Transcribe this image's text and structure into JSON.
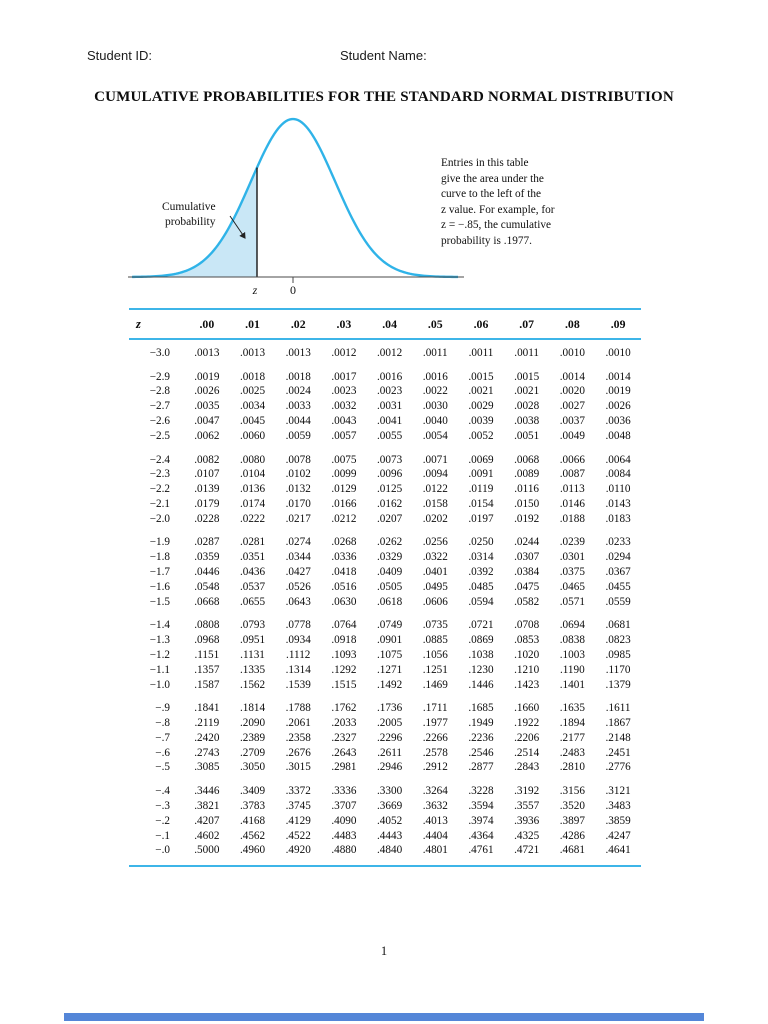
{
  "header": {
    "student_id_label": "Student ID:",
    "student_name_label": "Student Name:"
  },
  "title": "CUMULATIVE PROBABILITIES FOR THE STANDARD NORMAL DISTRIBUTION",
  "figure": {
    "cumulative_label_line1": "Cumulative",
    "cumulative_label_line2": "probability",
    "z_label": "z",
    "zero_label": "0",
    "note_lines": [
      "Entries in this table",
      "give the area under the",
      "curve to the left of the",
      "z value. For example, for",
      "z = −.85, the cumulative",
      "probability is .1977."
    ],
    "curve_color": "#2fb3e8",
    "fill_color": "#c9e7f6",
    "rule_color": "#3db5e8"
  },
  "table": {
    "columns": [
      "z",
      ".00",
      ".01",
      ".02",
      ".03",
      ".04",
      ".05",
      ".06",
      ".07",
      ".08",
      ".09"
    ],
    "groups": [
      [
        [
          "−3.0",
          ".0013",
          ".0013",
          ".0013",
          ".0012",
          ".0012",
          ".0011",
          ".0011",
          ".0011",
          ".0010",
          ".0010"
        ]
      ],
      [
        [
          "−2.9",
          ".0019",
          ".0018",
          ".0018",
          ".0017",
          ".0016",
          ".0016",
          ".0015",
          ".0015",
          ".0014",
          ".0014"
        ],
        [
          "−2.8",
          ".0026",
          ".0025",
          ".0024",
          ".0023",
          ".0023",
          ".0022",
          ".0021",
          ".0021",
          ".0020",
          ".0019"
        ],
        [
          "−2.7",
          ".0035",
          ".0034",
          ".0033",
          ".0032",
          ".0031",
          ".0030",
          ".0029",
          ".0028",
          ".0027",
          ".0026"
        ],
        [
          "−2.6",
          ".0047",
          ".0045",
          ".0044",
          ".0043",
          ".0041",
          ".0040",
          ".0039",
          ".0038",
          ".0037",
          ".0036"
        ],
        [
          "−2.5",
          ".0062",
          ".0060",
          ".0059",
          ".0057",
          ".0055",
          ".0054",
          ".0052",
          ".0051",
          ".0049",
          ".0048"
        ]
      ],
      [
        [
          "−2.4",
          ".0082",
          ".0080",
          ".0078",
          ".0075",
          ".0073",
          ".0071",
          ".0069",
          ".0068",
          ".0066",
          ".0064"
        ],
        [
          "−2.3",
          ".0107",
          ".0104",
          ".0102",
          ".0099",
          ".0096",
          ".0094",
          ".0091",
          ".0089",
          ".0087",
          ".0084"
        ],
        [
          "−2.2",
          ".0139",
          ".0136",
          ".0132",
          ".0129",
          ".0125",
          ".0122",
          ".0119",
          ".0116",
          ".0113",
          ".0110"
        ],
        [
          "−2.1",
          ".0179",
          ".0174",
          ".0170",
          ".0166",
          ".0162",
          ".0158",
          ".0154",
          ".0150",
          ".0146",
          ".0143"
        ],
        [
          "−2.0",
          ".0228",
          ".0222",
          ".0217",
          ".0212",
          ".0207",
          ".0202",
          ".0197",
          ".0192",
          ".0188",
          ".0183"
        ]
      ],
      [
        [
          "−1.9",
          ".0287",
          ".0281",
          ".0274",
          ".0268",
          ".0262",
          ".0256",
          ".0250",
          ".0244",
          ".0239",
          ".0233"
        ],
        [
          "−1.8",
          ".0359",
          ".0351",
          ".0344",
          ".0336",
          ".0329",
          ".0322",
          ".0314",
          ".0307",
          ".0301",
          ".0294"
        ],
        [
          "−1.7",
          ".0446",
          ".0436",
          ".0427",
          ".0418",
          ".0409",
          ".0401",
          ".0392",
          ".0384",
          ".0375",
          ".0367"
        ],
        [
          "−1.6",
          ".0548",
          ".0537",
          ".0526",
          ".0516",
          ".0505",
          ".0495",
          ".0485",
          ".0475",
          ".0465",
          ".0455"
        ],
        [
          "−1.5",
          ".0668",
          ".0655",
          ".0643",
          ".0630",
          ".0618",
          ".0606",
          ".0594",
          ".0582",
          ".0571",
          ".0559"
        ]
      ],
      [
        [
          "−1.4",
          ".0808",
          ".0793",
          ".0778",
          ".0764",
          ".0749",
          ".0735",
          ".0721",
          ".0708",
          ".0694",
          ".0681"
        ],
        [
          "−1.3",
          ".0968",
          ".0951",
          ".0934",
          ".0918",
          ".0901",
          ".0885",
          ".0869",
          ".0853",
          ".0838",
          ".0823"
        ],
        [
          "−1.2",
          ".1151",
          ".1131",
          ".1112",
          ".1093",
          ".1075",
          ".1056",
          ".1038",
          ".1020",
          ".1003",
          ".0985"
        ],
        [
          "−1.1",
          ".1357",
          ".1335",
          ".1314",
          ".1292",
          ".1271",
          ".1251",
          ".1230",
          ".1210",
          ".1190",
          ".1170"
        ],
        [
          "−1.0",
          ".1587",
          ".1562",
          ".1539",
          ".1515",
          ".1492",
          ".1469",
          ".1446",
          ".1423",
          ".1401",
          ".1379"
        ]
      ],
      [
        [
          "−.9",
          ".1841",
          ".1814",
          ".1788",
          ".1762",
          ".1736",
          ".1711",
          ".1685",
          ".1660",
          ".1635",
          ".1611"
        ],
        [
          "−.8",
          ".2119",
          ".2090",
          ".2061",
          ".2033",
          ".2005",
          ".1977",
          ".1949",
          ".1922",
          ".1894",
          ".1867"
        ],
        [
          "−.7",
          ".2420",
          ".2389",
          ".2358",
          ".2327",
          ".2296",
          ".2266",
          ".2236",
          ".2206",
          ".2177",
          ".2148"
        ],
        [
          "−.6",
          ".2743",
          ".2709",
          ".2676",
          ".2643",
          ".2611",
          ".2578",
          ".2546",
          ".2514",
          ".2483",
          ".2451"
        ],
        [
          "−.5",
          ".3085",
          ".3050",
          ".3015",
          ".2981",
          ".2946",
          ".2912",
          ".2877",
          ".2843",
          ".2810",
          ".2776"
        ]
      ],
      [
        [
          "−.4",
          ".3446",
          ".3409",
          ".3372",
          ".3336",
          ".3300",
          ".3264",
          ".3228",
          ".3192",
          ".3156",
          ".3121"
        ],
        [
          "−.3",
          ".3821",
          ".3783",
          ".3745",
          ".3707",
          ".3669",
          ".3632",
          ".3594",
          ".3557",
          ".3520",
          ".3483"
        ],
        [
          "−.2",
          ".4207",
          ".4168",
          ".4129",
          ".4090",
          ".4052",
          ".4013",
          ".3974",
          ".3936",
          ".3897",
          ".3859"
        ],
        [
          "−.1",
          ".4602",
          ".4562",
          ".4522",
          ".4483",
          ".4443",
          ".4404",
          ".4364",
          ".4325",
          ".4286",
          ".4247"
        ],
        [
          "−.0",
          ".5000",
          ".4960",
          ".4920",
          ".4880",
          ".4840",
          ".4801",
          ".4761",
          ".4721",
          ".4681",
          ".4641"
        ]
      ]
    ]
  },
  "footer": {
    "page_number": "1",
    "bar_color": "#5486d8"
  }
}
